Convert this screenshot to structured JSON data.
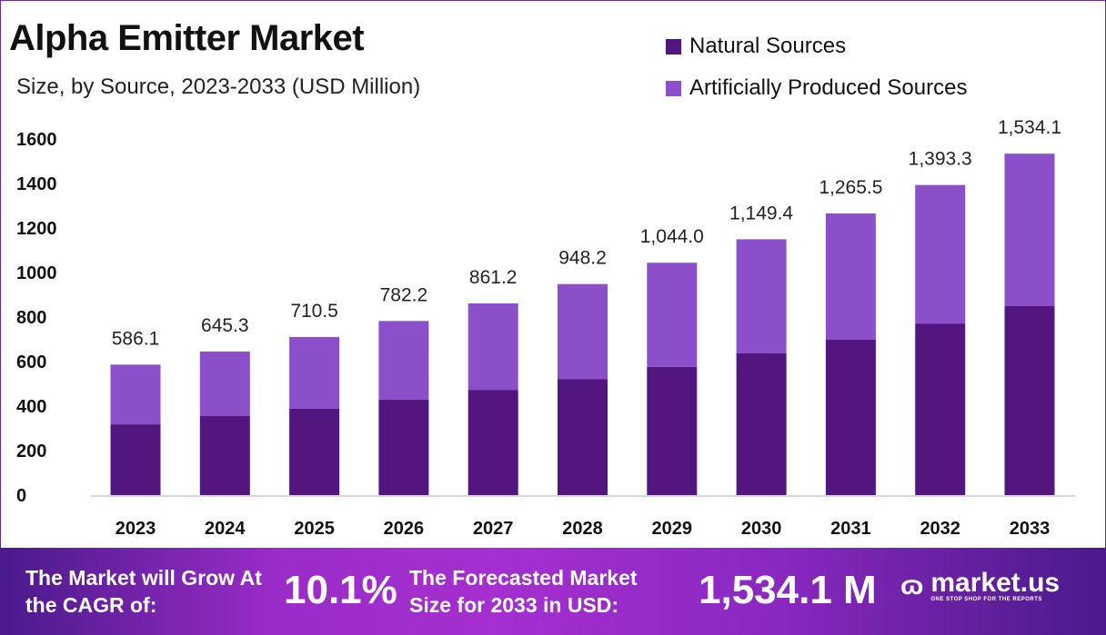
{
  "header": {
    "title": "Alpha Emitter Market",
    "subtitle": "Size, by Source, 2023-2033 (USD Million)"
  },
  "colors": {
    "natural": "#53167f",
    "artificial": "#8b4fca",
    "footer": "#9a2cc8"
  },
  "chart_data": {
    "type": "bar",
    "stacked": true,
    "title": "Alpha Emitter Market",
    "subtitle": "Size, by Source, 2023-2033 (USD Million)",
    "categories": [
      "2023",
      "2024",
      "2025",
      "2026",
      "2027",
      "2028",
      "2029",
      "2030",
      "2031",
      "2032",
      "2033"
    ],
    "series": [
      {
        "name": "Natural Sources",
        "values": [
          318,
          355,
          388,
          429,
          473,
          522,
          576,
          637,
          698,
          771,
          849
        ]
      },
      {
        "name": "Artificially Produced Sources",
        "values": [
          268.1,
          290.3,
          322.5,
          353.2,
          388.2,
          426.2,
          468.0,
          512.4,
          567.5,
          622.3,
          685.1
        ]
      }
    ],
    "totals": [
      "586.1",
      "645.3",
      "710.5",
      "782.2",
      "861.2",
      "948.2",
      "1,044.0",
      "1,149.4",
      "1,265.5",
      "1,393.3",
      "1,534.1"
    ],
    "total_values": [
      586.1,
      645.3,
      710.5,
      782.2,
      861.2,
      948.2,
      1044.0,
      1149.4,
      1265.5,
      1393.3,
      1534.1
    ],
    "yticks": [
      "0",
      "200",
      "400",
      "600",
      "800",
      "1000",
      "1200",
      "1400",
      "1600"
    ],
    "ylim": [
      0,
      1600
    ],
    "grid": false,
    "legend": "top-right",
    "xlabel": "",
    "ylabel": ""
  },
  "footer": {
    "cagr_label": "The Market will Grow At the CAGR of:",
    "cagr_value": "10.1%",
    "forecast_label": "The Forecasted Market Size for 2033 in USD:",
    "forecast_value": "1,534.1 M",
    "brand": "market.us",
    "tagline": "ONE STOP SHOP FOR THE REPORTS"
  }
}
